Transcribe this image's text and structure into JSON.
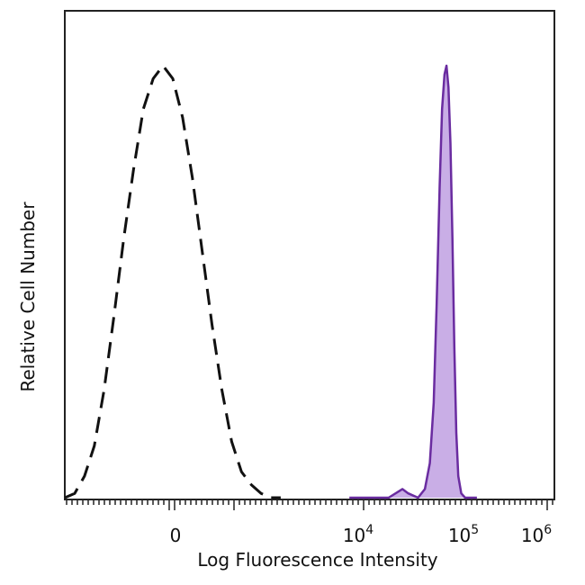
{
  "chart_data": {
    "type": "area",
    "xlabel": "Log Fluorescence Intensity",
    "ylabel": "Relative Cell Number",
    "x_scale": "biexponential",
    "x_ticks": [
      {
        "base": "0",
        "sup": ""
      },
      {
        "base": "10",
        "sup": "4"
      },
      {
        "base": "10",
        "sup": "5"
      },
      {
        "base": "10",
        "sup": "6"
      }
    ],
    "y_range": [
      0,
      1
    ],
    "series": [
      {
        "style": "dashed",
        "color": "#111111",
        "points": [
          [
            -11,
            0.0
          ],
          [
            -10,
            0.01
          ],
          [
            -9,
            0.05
          ],
          [
            -8,
            0.12
          ],
          [
            -7,
            0.25
          ],
          [
            -6,
            0.42
          ],
          [
            -5,
            0.6
          ],
          [
            -4,
            0.76
          ],
          [
            -3,
            0.9
          ],
          [
            -2,
            0.97
          ],
          [
            -1,
            1.0
          ],
          [
            0,
            0.97
          ],
          [
            1,
            0.88
          ],
          [
            2,
            0.74
          ],
          [
            3,
            0.57
          ],
          [
            4,
            0.4
          ],
          [
            5,
            0.25
          ],
          [
            6,
            0.13
          ],
          [
            7,
            0.06
          ],
          [
            8,
            0.03
          ],
          [
            9,
            0.01
          ],
          [
            10,
            0.0
          ],
          [
            11,
            0.0
          ]
        ]
      },
      {
        "style": "filled",
        "color": "#6a2ca0",
        "fill": "#c9aee6",
        "points": [
          [
            18.0,
            0.0
          ],
          [
            22.0,
            0.0
          ],
          [
            23.4,
            0.02
          ],
          [
            24.0,
            0.01
          ],
          [
            25.0,
            0.0
          ],
          [
            25.7,
            0.02
          ],
          [
            26.2,
            0.08
          ],
          [
            26.6,
            0.22
          ],
          [
            26.9,
            0.45
          ],
          [
            27.2,
            0.72
          ],
          [
            27.45,
            0.9
          ],
          [
            27.7,
            0.98
          ],
          [
            27.9,
            1.0
          ],
          [
            28.1,
            0.95
          ],
          [
            28.3,
            0.82
          ],
          [
            28.5,
            0.6
          ],
          [
            28.7,
            0.35
          ],
          [
            28.9,
            0.15
          ],
          [
            29.1,
            0.05
          ],
          [
            29.4,
            0.01
          ],
          [
            29.8,
            0.0
          ],
          [
            31.0,
            0.0
          ]
        ]
      }
    ]
  }
}
